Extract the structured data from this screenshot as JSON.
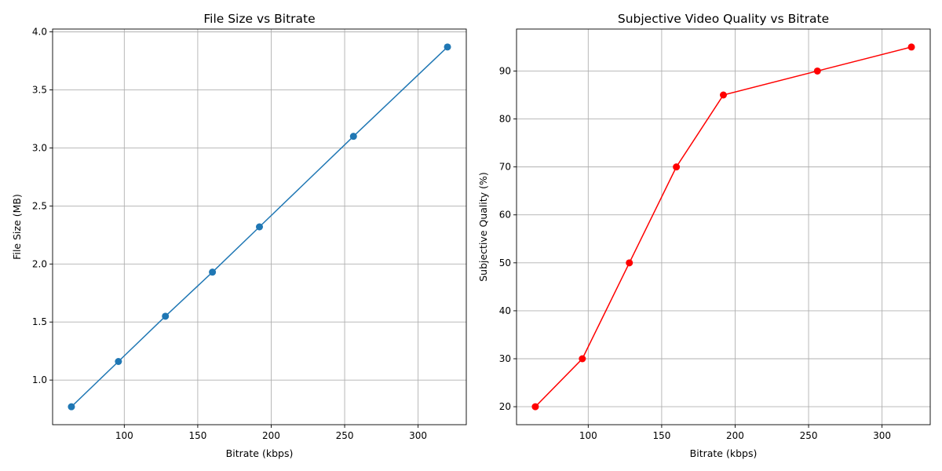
{
  "chart_data": [
    {
      "type": "line",
      "title": "File Size vs Bitrate",
      "xlabel": "Bitrate (kbps)",
      "ylabel": "File Size (MB)",
      "xlim": [
        51.2,
        332.8
      ],
      "ylim": [
        0.6155,
        4.0245
      ],
      "xticks": [
        100,
        150,
        200,
        250,
        300
      ],
      "yticks": [
        1.0,
        1.5,
        2.0,
        2.5,
        3.0,
        3.5,
        4.0
      ],
      "ytick_format": 1,
      "grid": true,
      "series": [
        {
          "color": "#1f77b4",
          "marker": "circle",
          "x": [
            64,
            96,
            128,
            160,
            192,
            256,
            320
          ],
          "y": [
            0.77,
            1.16,
            1.55,
            1.93,
            2.32,
            3.1,
            3.87
          ]
        }
      ]
    },
    {
      "type": "line",
      "title": "Subjective Video Quality vs Bitrate",
      "xlabel": "Bitrate (kbps)",
      "ylabel": "Subjective Quality (%)",
      "xlim": [
        51.2,
        332.8
      ],
      "ylim": [
        16.25,
        98.75
      ],
      "xticks": [
        100,
        150,
        200,
        250,
        300
      ],
      "yticks": [
        20,
        30,
        40,
        50,
        60,
        70,
        80,
        90
      ],
      "ytick_format": 0,
      "grid": true,
      "series": [
        {
          "color": "#ff0000",
          "marker": "circle",
          "x": [
            64,
            96,
            128,
            160,
            192,
            256,
            320
          ],
          "y": [
            20,
            30,
            50,
            70,
            85,
            90,
            95
          ]
        }
      ]
    }
  ]
}
